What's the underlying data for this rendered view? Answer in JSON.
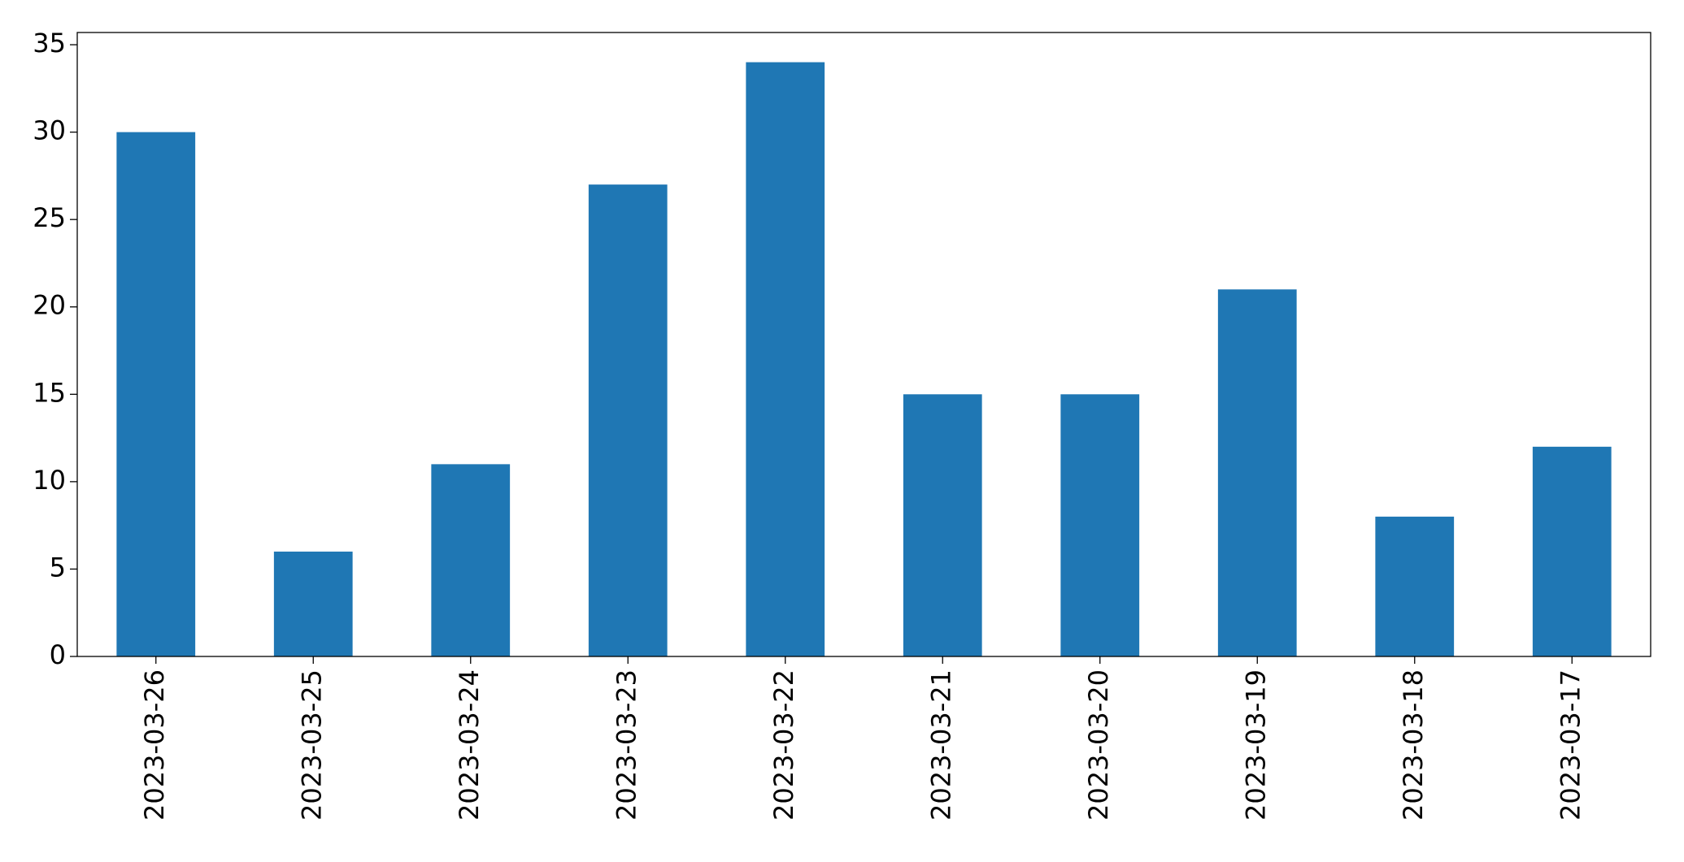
{
  "chart_data": {
    "type": "bar",
    "categories": [
      "2023-03-26",
      "2023-03-25",
      "2023-03-24",
      "2023-03-23",
      "2023-03-22",
      "2023-03-21",
      "2023-03-20",
      "2023-03-19",
      "2023-03-18",
      "2023-03-17"
    ],
    "values": [
      30,
      6,
      11,
      27,
      34,
      15,
      15,
      21,
      8,
      12
    ],
    "color": "#1f77b4",
    "ylim": [
      0,
      35.7
    ],
    "yticks": [
      0,
      5,
      10,
      15,
      20,
      25,
      30,
      35
    ],
    "grid": false
  }
}
